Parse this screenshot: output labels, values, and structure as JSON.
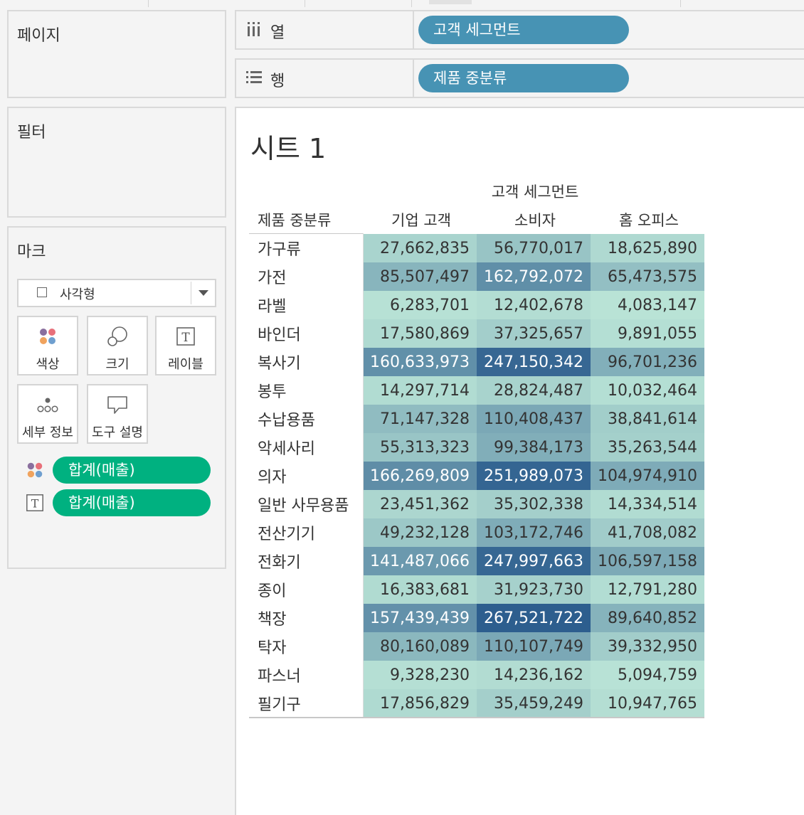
{
  "panels": {
    "pages": {
      "title": "페이지"
    },
    "filters": {
      "title": "필터"
    },
    "marks": {
      "title": "마크",
      "mark_type": "사각형",
      "buttons": {
        "color": "색상",
        "size": "크기",
        "label": "레이블",
        "detail": "세부 정보",
        "tooltip": "도구 설명"
      },
      "fields": [
        {
          "icon": "color-dots-icon",
          "label": "합계(매출)"
        },
        {
          "icon": "text-label-icon",
          "label": "합계(매출)"
        }
      ]
    }
  },
  "shelves": {
    "columns": {
      "label": "열",
      "pill": "고객 세그먼트"
    },
    "rows": {
      "label": "행",
      "pill": "제품 중분류"
    }
  },
  "sheet": {
    "title": "시트 1",
    "column_group": "고객 세그먼트",
    "row_header": "제품 중분류",
    "column_headers": [
      "기업 고객",
      "소비자",
      "홈 오피스"
    ]
  },
  "colors": {
    "pill_green": "#00b180",
    "pill_blue": "#4793b4",
    "heat_low": "#b9e3d6",
    "heat_high": "#2d5e8e"
  },
  "chart_data": {
    "type": "table",
    "categories": [
      "가구류",
      "가전",
      "라벨",
      "바인더",
      "복사기",
      "봉투",
      "수납용품",
      "악세사리",
      "의자",
      "일반 사무용품",
      "전산기기",
      "전화기",
      "종이",
      "책장",
      "탁자",
      "파스너",
      "필기구"
    ],
    "series": [
      {
        "name": "기업 고객",
        "values": [
          27662835,
          85507497,
          6283701,
          17580869,
          160633973,
          14297714,
          71147328,
          55313323,
          166269809,
          23451362,
          49232128,
          141487066,
          16383681,
          157439439,
          80160089,
          9328230,
          17856829
        ]
      },
      {
        "name": "소비자",
        "values": [
          56770017,
          162792072,
          12402678,
          37325657,
          247150342,
          28824487,
          110408437,
          99384173,
          251989073,
          35302338,
          103172746,
          247997663,
          31923730,
          267521722,
          110107749,
          14236162,
          35459249
        ]
      },
      {
        "name": "홈 오피스",
        "values": [
          18625890,
          65473575,
          4083147,
          9891055,
          96701236,
          10032464,
          38841614,
          35263544,
          104974910,
          14334514,
          41708082,
          106597158,
          12791280,
          89640852,
          39332950,
          5094759,
          10947765
        ]
      }
    ],
    "display": [
      [
        "27,662,835",
        "56,770,017",
        "18,625,890"
      ],
      [
        "85,507,497",
        "162,792,072",
        "65,473,575"
      ],
      [
        "6,283,701",
        "12,402,678",
        "4,083,147"
      ],
      [
        "17,580,869",
        "37,325,657",
        "9,891,055"
      ],
      [
        "160,633,973",
        "247,150,342",
        "96,701,236"
      ],
      [
        "14,297,714",
        "28,824,487",
        "10,032,464"
      ],
      [
        "71,147,328",
        "110,408,437",
        "38,841,614"
      ],
      [
        "55,313,323",
        "99,384,173",
        "35,263,544"
      ],
      [
        "166,269,809",
        "251,989,073",
        "104,974,910"
      ],
      [
        "23,451,362",
        "35,302,338",
        "14,334,514"
      ],
      [
        "49,232,128",
        "103,172,746",
        "41,708,082"
      ],
      [
        "141,487,066",
        "247,997,663",
        "106,597,158"
      ],
      [
        "16,383,681",
        "31,923,730",
        "12,791,280"
      ],
      [
        "157,439,439",
        "267,521,722",
        "89,640,852"
      ],
      [
        "80,160,089",
        "110,107,749",
        "39,332,950"
      ],
      [
        "9,328,230",
        "14,236,162",
        "5,094,759"
      ],
      [
        "17,856,829",
        "35,459,249",
        "10,947,765"
      ]
    ]
  }
}
